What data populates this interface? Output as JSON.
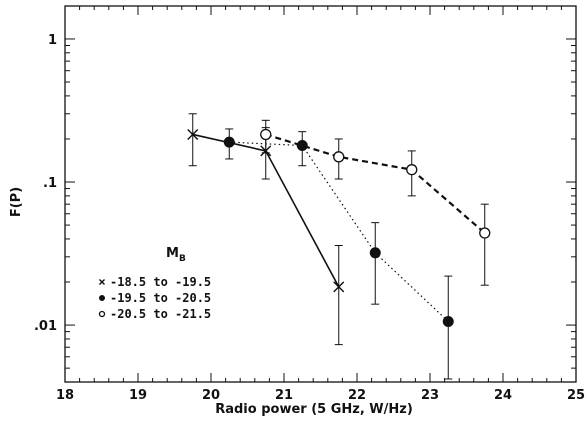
{
  "chart_data": {
    "type": "line",
    "xlabel": "Radio power (5 GHz, W/Hz)",
    "ylabel": "F(P)",
    "xlim": [
      18,
      25
    ],
    "ylim": [
      0.004,
      1.7
    ],
    "yscale": "log",
    "x_ticks": [
      "18",
      "19",
      "20",
      "21",
      "22",
      "23",
      "24",
      "25"
    ],
    "x_tick_values": [
      18,
      19,
      20,
      21,
      22,
      23,
      24,
      25
    ],
    "y_ticks": [
      "1",
      ".1",
      ".01"
    ],
    "y_tick_values": [
      1,
      0.1,
      0.01
    ],
    "grid": false,
    "legend": {
      "title": "M_B",
      "title_main": "M",
      "title_sub": "B",
      "placement": "lower-left"
    },
    "series": [
      {
        "name": "-18.5 to -19.5",
        "marker": "x",
        "line": "solid",
        "x": [
          19.75,
          20.75,
          21.75
        ],
        "y": [
          0.215,
          0.165,
          0.0185
        ],
        "y_low": [
          0.13,
          0.105,
          0.0073
        ],
        "y_high": [
          0.3,
          0.24,
          0.036
        ]
      },
      {
        "name": "-19.5 to -20.5",
        "marker": "filled-circle",
        "line": "dotted",
        "x": [
          20.25,
          21.25,
          22.25,
          23.25
        ],
        "y": [
          0.19,
          0.18,
          0.032,
          0.0106
        ],
        "y_low": [
          0.145,
          0.13,
          0.014,
          0.0042
        ],
        "y_high": [
          0.235,
          0.225,
          0.052,
          0.022
        ]
      },
      {
        "name": "-20.5 to -21.5",
        "marker": "open-circle",
        "line": "dashed",
        "x": [
          20.75,
          21.75,
          22.75,
          23.75
        ],
        "y": [
          0.215,
          0.15,
          0.122,
          0.044
        ],
        "y_low": [
          0.16,
          0.105,
          0.08,
          0.019
        ],
        "y_high": [
          0.27,
          0.2,
          0.165,
          0.07
        ]
      }
    ]
  }
}
